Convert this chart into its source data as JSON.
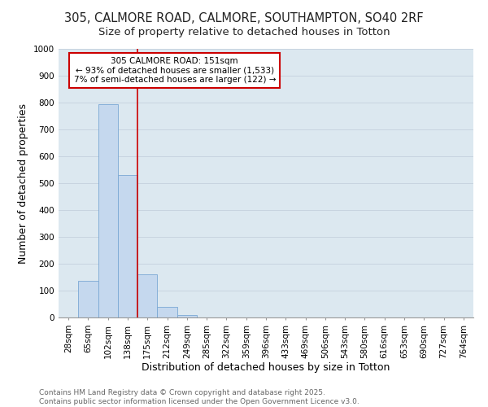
{
  "title1": "305, CALMORE ROAD, CALMORE, SOUTHAMPTON, SO40 2RF",
  "title2": "Size of property relative to detached houses in Totton",
  "xlabel": "Distribution of detached houses by size in Totton",
  "ylabel": "Number of detached properties",
  "bins": [
    "28sqm",
    "65sqm",
    "102sqm",
    "138sqm",
    "175sqm",
    "212sqm",
    "249sqm",
    "285sqm",
    "322sqm",
    "359sqm",
    "396sqm",
    "433sqm",
    "469sqm",
    "506sqm",
    "543sqm",
    "580sqm",
    "616sqm",
    "653sqm",
    "690sqm",
    "727sqm",
    "764sqm"
  ],
  "values": [
    0,
    135,
    795,
    530,
    160,
    40,
    10,
    0,
    0,
    0,
    0,
    0,
    0,
    0,
    0,
    0,
    0,
    0,
    0,
    0,
    0
  ],
  "bar_color": "#c5d8ee",
  "bar_edge_color": "#7aa8d4",
  "vline_color": "#cc0000",
  "annotation_line1": "305 CALMORE ROAD: 151sqm",
  "annotation_line2": "← 93% of detached houses are smaller (1,533)",
  "annotation_line3": "7% of semi-detached houses are larger (122) →",
  "annotation_box_color": "#cc0000",
  "ylim": [
    0,
    1000
  ],
  "yticks": [
    0,
    100,
    200,
    300,
    400,
    500,
    600,
    700,
    800,
    900,
    1000
  ],
  "grid_color": "#c8d4e0",
  "bg_color": "#dce8f0",
  "footer": "Contains HM Land Registry data © Crown copyright and database right 2025.\nContains public sector information licensed under the Open Government Licence v3.0.",
  "title1_fontsize": 10.5,
  "title2_fontsize": 9.5,
  "axis_label_fontsize": 9,
  "tick_fontsize": 7.5,
  "annotation_fontsize": 7.5,
  "footer_fontsize": 6.5
}
